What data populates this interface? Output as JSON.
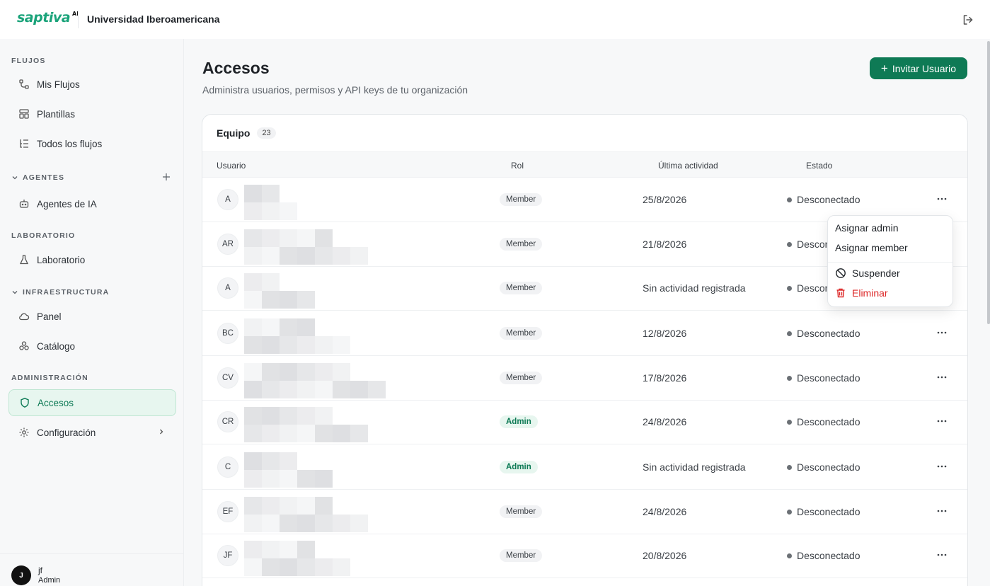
{
  "brand": {
    "logo_text": "saptiva",
    "logo_sup": "AI",
    "org_name": "Universidad Iberoamericana"
  },
  "sidebar": {
    "sections": {
      "flujos": "FLUJOS",
      "agentes": "AGENTES",
      "laboratorio": "LABORATORIO",
      "infraestructura": "INFRAESTRUCTURA",
      "administracion": "ADMINISTRACIÓN"
    },
    "items": {
      "mis_flujos": "Mis Flujos",
      "plantillas": "Plantillas",
      "todos_flujos": "Todos los flujos",
      "agentes_ia": "Agentes de IA",
      "laboratorio": "Laboratorio",
      "panel": "Panel",
      "catalogo": "Catálogo",
      "accesos": "Accesos",
      "configuracion": "Configuración"
    },
    "user": {
      "initial": "J",
      "name": "jf",
      "role": "Admin"
    }
  },
  "page": {
    "title": "Accesos",
    "subtitle": "Administra usuarios, permisos y API keys de tu organización",
    "invite_label": "Invitar Usuario"
  },
  "team": {
    "title": "Equipo",
    "count": "23",
    "columns": {
      "user": "Usuario",
      "role": "Rol",
      "activity": "Última actividad",
      "status": "Estado"
    },
    "rows": [
      {
        "initials": "A",
        "role": "Member",
        "activity": "25/8/2026",
        "status": "Desconectado"
      },
      {
        "initials": "AR",
        "role": "Member",
        "activity": "21/8/2026",
        "status": "Desconectado"
      },
      {
        "initials": "A",
        "role": "Member",
        "activity": "Sin actividad registrada",
        "status": "Desconectado"
      },
      {
        "initials": "BC",
        "role": "Member",
        "activity": "12/8/2026",
        "status": "Desconectado"
      },
      {
        "initials": "CV",
        "role": "Member",
        "activity": "17/8/2026",
        "status": "Desconectado"
      },
      {
        "initials": "CR",
        "role": "Admin",
        "activity": "24/8/2026",
        "status": "Desconectado"
      },
      {
        "initials": "C",
        "role": "Admin",
        "activity": "Sin actividad registrada",
        "status": "Desconectado"
      },
      {
        "initials": "EF",
        "role": "Member",
        "activity": "24/8/2026",
        "status": "Desconectado"
      },
      {
        "initials": "JF",
        "role": "Member",
        "activity": "20/8/2026",
        "status": "Desconectado"
      }
    ]
  },
  "menu": {
    "assign_admin": "Asignar admin",
    "assign_member": "Asignar member",
    "suspend": "Suspender",
    "delete": "Eliminar"
  },
  "colors": {
    "accent": "#0e7a55",
    "danger": "#dc2626",
    "active_bg": "#e7f6ef"
  }
}
